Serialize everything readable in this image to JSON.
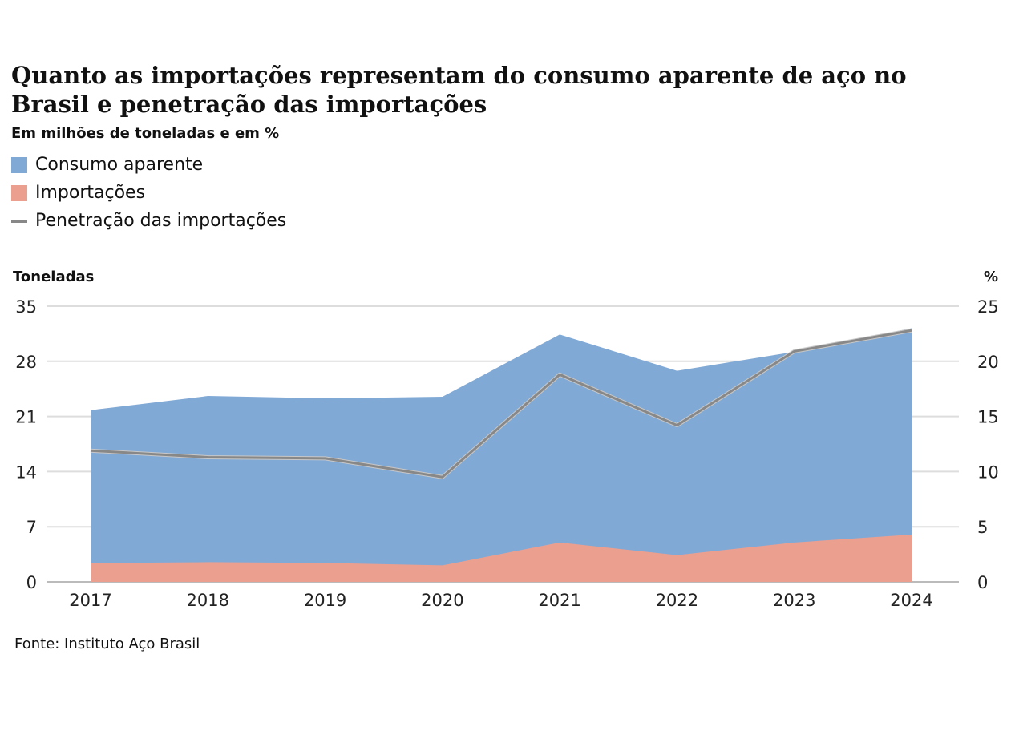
{
  "title": "Quanto as importações representam do consumo aparente de aço no Brasil e penetração das importações",
  "subtitle": "Em milhões de toneladas e em %",
  "legend": [
    {
      "label": "Consumo aparente",
      "color": "#80a9d6",
      "icon": "square-swatch"
    },
    {
      "label": "Importações",
      "color": "#eb9f8f",
      "icon": "square-swatch"
    },
    {
      "label": "Penetração das importações",
      "color": "#888888",
      "icon": "line-swatch"
    }
  ],
  "left_axis_title": "Toneladas",
  "right_axis_title": "%",
  "source": "Fonte: Instituto Aço Brasil",
  "chart_data": {
    "type": "area",
    "title": "Quanto as importações representam do consumo aparente de aço no Brasil e penetração das importações",
    "categories": [
      "2017",
      "2018",
      "2019",
      "2020",
      "2021",
      "2022",
      "2023",
      "2024"
    ],
    "series": [
      {
        "name": "Consumo aparente",
        "axis": "left",
        "chart": "area",
        "values": [
          21.8,
          23.6,
          23.3,
          23.5,
          31.4,
          26.8,
          29.2,
          32.2
        ]
      },
      {
        "name": "Importações",
        "axis": "left",
        "chart": "area",
        "values": [
          2.4,
          2.5,
          2.4,
          2.1,
          5.0,
          3.4,
          5.0,
          6.0
        ]
      },
      {
        "name": "Penetração das importações",
        "axis": "right",
        "chart": "line",
        "values": [
          11.9,
          11.3,
          11.2,
          9.5,
          18.8,
          14.2,
          20.9,
          22.8
        ]
      }
    ],
    "ylabel_left": "Toneladas",
    "ylabel_right": "%",
    "ylim_left": [
      0,
      35
    ],
    "ylim_right": [
      0,
      25
    ],
    "yticks_left": [
      "0",
      "7",
      "14",
      "21",
      "28",
      "35"
    ],
    "yticks_right": [
      "0",
      "5",
      "10",
      "15",
      "20",
      "25"
    ],
    "grid": true
  }
}
